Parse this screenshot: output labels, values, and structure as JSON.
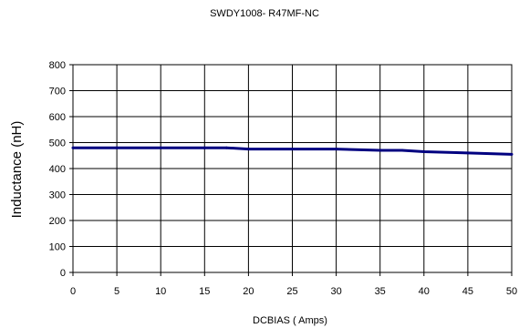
{
  "chart_data": {
    "type": "line",
    "title": "SWDY1008- R47MF-NC",
    "xlabel": "DCBIAS ( Amps)",
    "ylabel": "Inductance (nH)",
    "xlim": [
      0,
      50
    ],
    "ylim": [
      0,
      800
    ],
    "xticks": [
      0,
      5,
      10,
      15,
      20,
      25,
      30,
      35,
      40,
      45,
      50
    ],
    "yticks": [
      0,
      100,
      200,
      300,
      400,
      500,
      600,
      700,
      800
    ],
    "grid": true,
    "legend": "none",
    "series": [
      {
        "color": "#000080",
        "x": [
          0,
          5,
          10,
          15,
          17.5,
          20,
          25,
          30,
          35,
          37.5,
          40,
          45,
          50
        ],
        "y": [
          480,
          480,
          480,
          480,
          480,
          475,
          475,
          475,
          470,
          470,
          465,
          460,
          455
        ]
      }
    ]
  }
}
